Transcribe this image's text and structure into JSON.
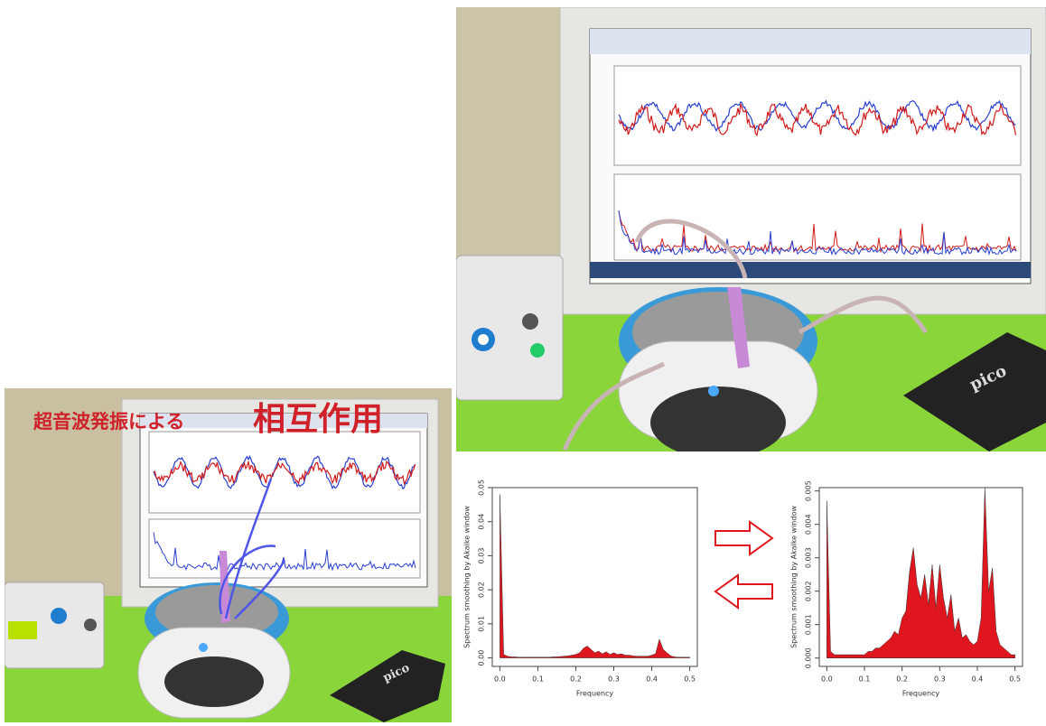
{
  "caption": [
    "超音波発振による",
    "相互作用"
  ],
  "device_label": "pico",
  "chart_data": [
    {
      "type": "area",
      "color": "#e0161e",
      "xlabel": "Frequency",
      "ylabel": "Spectrum smoothing by Akaike window",
      "x": [
        0,
        0.01,
        0.02,
        0.03,
        0.04,
        0.05,
        0.06,
        0.07,
        0.08,
        0.09,
        0.1,
        0.11,
        0.12,
        0.13,
        0.14,
        0.15,
        0.16,
        0.17,
        0.18,
        0.19,
        0.2,
        0.21,
        0.22,
        0.23,
        0.24,
        0.25,
        0.26,
        0.27,
        0.28,
        0.29,
        0.3,
        0.31,
        0.32,
        0.33,
        0.34,
        0.35,
        0.36,
        0.37,
        0.38,
        0.39,
        0.4,
        0.41,
        0.42,
        0.43,
        0.44,
        0.45,
        0.46,
        0.47,
        0.48,
        0.49,
        0.5
      ],
      "values": [
        0.048,
        0.001,
        0.0005,
        0.0003,
        0.0003,
        0.0002,
        0.0002,
        0.0002,
        0.0002,
        0.0002,
        0.0002,
        0.0002,
        0.0002,
        0.0002,
        0.0003,
        0.0003,
        0.0004,
        0.0005,
        0.0006,
        0.0008,
        0.001,
        0.0015,
        0.0028,
        0.0035,
        0.0025,
        0.0015,
        0.002,
        0.0012,
        0.0018,
        0.001,
        0.0015,
        0.001,
        0.0012,
        0.0008,
        0.0008,
        0.0006,
        0.0005,
        0.0005,
        0.0005,
        0.0005,
        0.0008,
        0.0012,
        0.0055,
        0.0025,
        0.0015,
        0.0006,
        0.0003,
        0.0002,
        0.0002,
        0.0002,
        0.0002
      ],
      "xlim": [
        -0.02,
        0.52
      ],
      "xticks": [
        {
          "value": 0,
          "label": "0.0"
        },
        0.1,
        0.2,
        0.3,
        0.4,
        0.5
      ],
      "ylim": [
        -0.0025,
        0.05
      ],
      "yticks": [
        {
          "value": 0,
          "label": "0.00"
        },
        0.01,
        0.02,
        0.03,
        0.04,
        0.05
      ]
    },
    {
      "type": "area",
      "color": "#e0161e",
      "xlabel": "Frequency",
      "ylabel": "Spectrum smoothing by Akaike window",
      "x": [
        0,
        0.01,
        0.02,
        0.03,
        0.04,
        0.05,
        0.06,
        0.07,
        0.08,
        0.09,
        0.1,
        0.11,
        0.12,
        0.13,
        0.14,
        0.15,
        0.16,
        0.17,
        0.18,
        0.19,
        0.2,
        0.21,
        0.22,
        0.23,
        0.24,
        0.25,
        0.26,
        0.27,
        0.28,
        0.29,
        0.3,
        0.31,
        0.32,
        0.33,
        0.34,
        0.35,
        0.36,
        0.37,
        0.38,
        0.39,
        0.4,
        0.41,
        0.42,
        0.43,
        0.44,
        0.45,
        0.46,
        0.47,
        0.48,
        0.49,
        0.5
      ],
      "values": [
        0.0047,
        0.0002,
        0.0001,
        0.0001,
        0.0001,
        0.0001,
        0.0001,
        0.0001,
        0.0001,
        0.0001,
        0.0001,
        0.0002,
        0.0002,
        0.0003,
        0.0003,
        0.0004,
        0.0005,
        0.0006,
        0.0008,
        0.0007,
        0.0012,
        0.0014,
        0.0026,
        0.0033,
        0.0022,
        0.0018,
        0.0025,
        0.0016,
        0.0028,
        0.0015,
        0.0028,
        0.0018,
        0.0012,
        0.0019,
        0.0008,
        0.0012,
        0.0006,
        0.0007,
        0.0005,
        0.0004,
        0.0005,
        0.0012,
        0.0051,
        0.002,
        0.0027,
        0.0008,
        0.0004,
        0.0003,
        0.0002,
        0.0001,
        0.0001
      ],
      "xlim": [
        -0.02,
        0.52
      ],
      "xticks": [
        {
          "value": 0,
          "label": "0.0"
        },
        0.1,
        0.2,
        0.3,
        0.4,
        0.5
      ],
      "ylim": [
        -0.00025,
        0.0051
      ],
      "yticks": [
        {
          "value": 0,
          "label": "0.000"
        },
        0.001,
        0.002,
        0.003,
        0.004,
        0.005
      ]
    }
  ]
}
